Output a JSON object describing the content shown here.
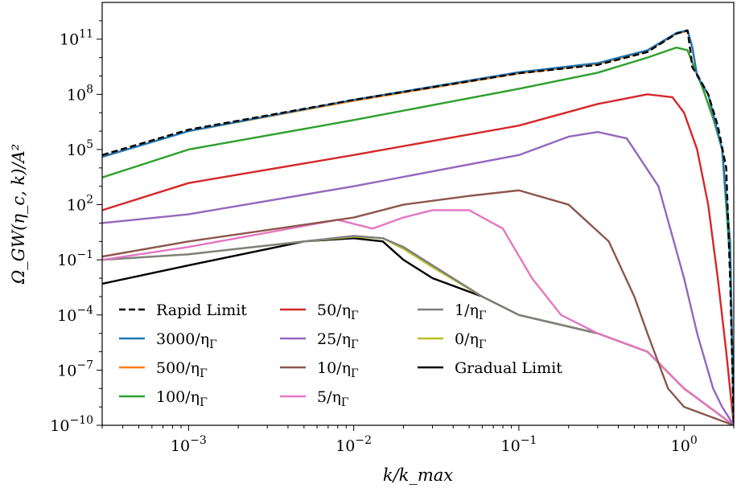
{
  "chart_data": {
    "type": "line",
    "xlabel": "k/k_max",
    "ylabel": "Ω_GW(η_c, k)/A²",
    "xscale": "log",
    "yscale": "log",
    "xlim": [
      0.0003,
      2.0
    ],
    "ylim": [
      1e-10,
      10000000000000.0
    ],
    "x_ticks": [
      {
        "value": 0.001,
        "label": "10^-3"
      },
      {
        "value": 0.01,
        "label": "10^-2"
      },
      {
        "value": 0.1,
        "label": "10^-1"
      },
      {
        "value": 1,
        "label": "10^0"
      }
    ],
    "y_ticks": [
      {
        "value": 1e-10,
        "label": "10^-10"
      },
      {
        "value": 1e-07,
        "label": "10^-7"
      },
      {
        "value": 0.0001,
        "label": "10^-4"
      },
      {
        "value": 0.1,
        "label": "10^-1"
      },
      {
        "value": 100,
        "label": "10^2"
      },
      {
        "value": 100000.0,
        "label": "10^5"
      },
      {
        "value": 100000000.0,
        "label": "10^8"
      },
      {
        "value": 100000000000.0,
        "label": "10^11"
      }
    ],
    "grid": false,
    "legend_position": "lower-left",
    "legend_columns": 3,
    "series": [
      {
        "name": "Rapid Limit",
        "color": "#000000",
        "dash": true,
        "points": [
          [
            0.0003,
            50000.0
          ],
          [
            0.001,
            1200000.0
          ],
          [
            0.01,
            50000000.0
          ],
          [
            0.1,
            1400000000.0
          ],
          [
            0.3,
            4000000000.0
          ],
          [
            0.6,
            20000000000.0
          ],
          [
            0.9,
            200000000000.0
          ],
          [
            1.05,
            300000000000.0
          ],
          [
            1.1,
            15000000000.0
          ],
          [
            1.12,
            3000000000.0
          ],
          [
            1.2,
            1200000000.0
          ],
          [
            1.4,
            100000000.0
          ],
          [
            1.6,
            2000000.0
          ],
          [
            1.8,
            10000.0
          ],
          [
            1.9,
            0.01
          ],
          [
            2.0,
            1e-10
          ]
        ]
      },
      {
        "name": "3000/η_Γ",
        "color": "#1f77b4",
        "points": [
          [
            0.0003,
            40000.0
          ],
          [
            0.001,
            1000000.0
          ],
          [
            0.01,
            50000000.0
          ],
          [
            0.1,
            1600000000.0
          ],
          [
            0.3,
            5000000000.0
          ],
          [
            0.6,
            25000000000.0
          ],
          [
            0.9,
            220000000000.0
          ],
          [
            1.05,
            300000000000.0
          ],
          [
            1.12,
            40000000000.0
          ],
          [
            1.2,
            1000000000.0
          ],
          [
            1.4,
            100000000.0
          ],
          [
            1.7,
            100000.0
          ],
          [
            1.9,
            1.0
          ],
          [
            2.0,
            1e-10
          ]
        ]
      },
      {
        "name": "500/η_Γ",
        "color": "#ff7f0e",
        "points": [
          [
            0.0003,
            40000.0
          ],
          [
            0.001,
            1000000.0
          ],
          [
            0.01,
            45000000.0
          ],
          [
            0.1,
            1400000000.0
          ],
          [
            0.3,
            4500000000.0
          ],
          [
            0.6,
            23000000000.0
          ],
          [
            0.9,
            200000000000.0
          ],
          [
            1.05,
            280000000000.0
          ],
          [
            1.12,
            40000000000.0
          ],
          [
            1.2,
            1000000000.0
          ],
          [
            1.4,
            100000000.0
          ],
          [
            1.7,
            100000.0
          ],
          [
            1.9,
            1.0
          ],
          [
            2.0,
            1e-10
          ]
        ]
      },
      {
        "name": "100/η_Γ",
        "color": "#2ca02c",
        "points": [
          [
            0.0003,
            3000.0
          ],
          [
            0.001,
            100000.0
          ],
          [
            0.01,
            4000000.0
          ],
          [
            0.1,
            200000000.0
          ],
          [
            0.3,
            1500000000.0
          ],
          [
            0.6,
            10000000000.0
          ],
          [
            0.9,
            35000000000.0
          ],
          [
            1.05,
            25000000000.0
          ],
          [
            1.15,
            3000000000.0
          ],
          [
            1.3,
            200000000.0
          ],
          [
            1.5,
            5000000.0
          ],
          [
            1.7,
            100000.0
          ],
          [
            1.9,
            0.1
          ],
          [
            2.0,
            1e-10
          ]
        ]
      },
      {
        "name": "50/η_Γ",
        "color": "#d62728",
        "points": [
          [
            0.0003,
            50.0
          ],
          [
            0.001,
            1500.0
          ],
          [
            0.01,
            50000.0
          ],
          [
            0.1,
            2000000.0
          ],
          [
            0.3,
            30000000.0
          ],
          [
            0.6,
            100000000.0
          ],
          [
            0.85,
            70000000.0
          ],
          [
            1.0,
            10000000.0
          ],
          [
            1.2,
            100000.0
          ],
          [
            1.4,
            100.0
          ],
          [
            1.6,
            0.01
          ],
          [
            1.8,
            1e-06
          ],
          [
            2.0,
            1e-10
          ]
        ]
      },
      {
        "name": "25/η_Γ",
        "color": "#9467bd",
        "points": [
          [
            0.0003,
            10.0
          ],
          [
            0.001,
            30.0
          ],
          [
            0.01,
            1000.0
          ],
          [
            0.1,
            50000.0
          ],
          [
            0.2,
            500000.0
          ],
          [
            0.3,
            900000.0
          ],
          [
            0.45,
            400000.0
          ],
          [
            0.7,
            1000.0
          ],
          [
            1.0,
            0.01
          ],
          [
            1.2,
            1e-05
          ],
          [
            1.5,
            1e-08
          ],
          [
            1.7,
            1e-09
          ],
          [
            2.0,
            1e-10
          ]
        ]
      },
      {
        "name": "10/η_Γ",
        "color": "#8c564b",
        "points": [
          [
            0.0003,
            0.15
          ],
          [
            0.001,
            1.0
          ],
          [
            0.01,
            20.0
          ],
          [
            0.02,
            100.0
          ],
          [
            0.05,
            300.0
          ],
          [
            0.1,
            600.0
          ],
          [
            0.2,
            100.0
          ],
          [
            0.35,
            1.0
          ],
          [
            0.5,
            0.001
          ],
          [
            0.6,
            1e-05
          ],
          [
            0.8,
            1e-08
          ],
          [
            1.0,
            1e-09
          ],
          [
            2.0,
            1e-10
          ]
        ]
      },
      {
        "name": "5/η_Γ",
        "color": "#e377c2",
        "points": [
          [
            0.0003,
            0.1
          ],
          [
            0.001,
            0.5
          ],
          [
            0.008,
            15.0
          ],
          [
            0.013,
            5.0
          ],
          [
            0.02,
            20.0
          ],
          [
            0.03,
            50.0
          ],
          [
            0.05,
            50.0
          ],
          [
            0.08,
            5.0
          ],
          [
            0.12,
            0.01
          ],
          [
            0.18,
            0.0001
          ],
          [
            0.3,
            1e-05
          ],
          [
            0.6,
            1e-06
          ],
          [
            1.0,
            1e-08
          ],
          [
            2.0,
            1e-10
          ]
        ]
      },
      {
        "name": "1/η_Γ",
        "color": "#7f7f7f",
        "points": [
          [
            0.0003,
            0.1
          ],
          [
            0.001,
            0.2
          ],
          [
            0.005,
            1.0
          ],
          [
            0.01,
            2.0
          ],
          [
            0.015,
            1.5
          ],
          [
            0.02,
            0.5
          ],
          [
            0.03,
            0.05
          ],
          [
            0.06,
            0.001
          ],
          [
            0.1,
            0.0001
          ],
          [
            0.3,
            1e-05
          ],
          [
            0.6,
            1e-06
          ],
          [
            1.0,
            1e-08
          ],
          [
            2.0,
            1e-10
          ]
        ]
      },
      {
        "name": "0/η_Γ",
        "color": "#bcbd22",
        "points": [
          [
            0.0003,
            0.1
          ],
          [
            0.001,
            0.2
          ],
          [
            0.005,
            1.0
          ],
          [
            0.01,
            1.8
          ],
          [
            0.015,
            1.5
          ],
          [
            0.02,
            0.4
          ],
          [
            0.03,
            0.04
          ],
          [
            0.06,
            0.001
          ],
          [
            0.1,
            0.0001
          ],
          [
            0.3,
            1e-05
          ],
          [
            0.6,
            1e-06
          ],
          [
            1.0,
            1e-08
          ],
          [
            2.0,
            1e-10
          ]
        ]
      },
      {
        "name": "Gradual Limit",
        "color": "#000000",
        "points": [
          [
            0.0003,
            0.005
          ],
          [
            0.001,
            0.05
          ],
          [
            0.005,
            1.0
          ],
          [
            0.01,
            1.5
          ],
          [
            0.015,
            1.0
          ],
          [
            0.02,
            0.1
          ],
          [
            0.03,
            0.01
          ],
          [
            0.06,
            0.001
          ],
          [
            0.1,
            0.0001
          ],
          [
            0.3,
            1e-05
          ],
          [
            0.6,
            1e-06
          ],
          [
            1.0,
            1e-08
          ],
          [
            2.0,
            1e-10
          ]
        ]
      }
    ]
  }
}
